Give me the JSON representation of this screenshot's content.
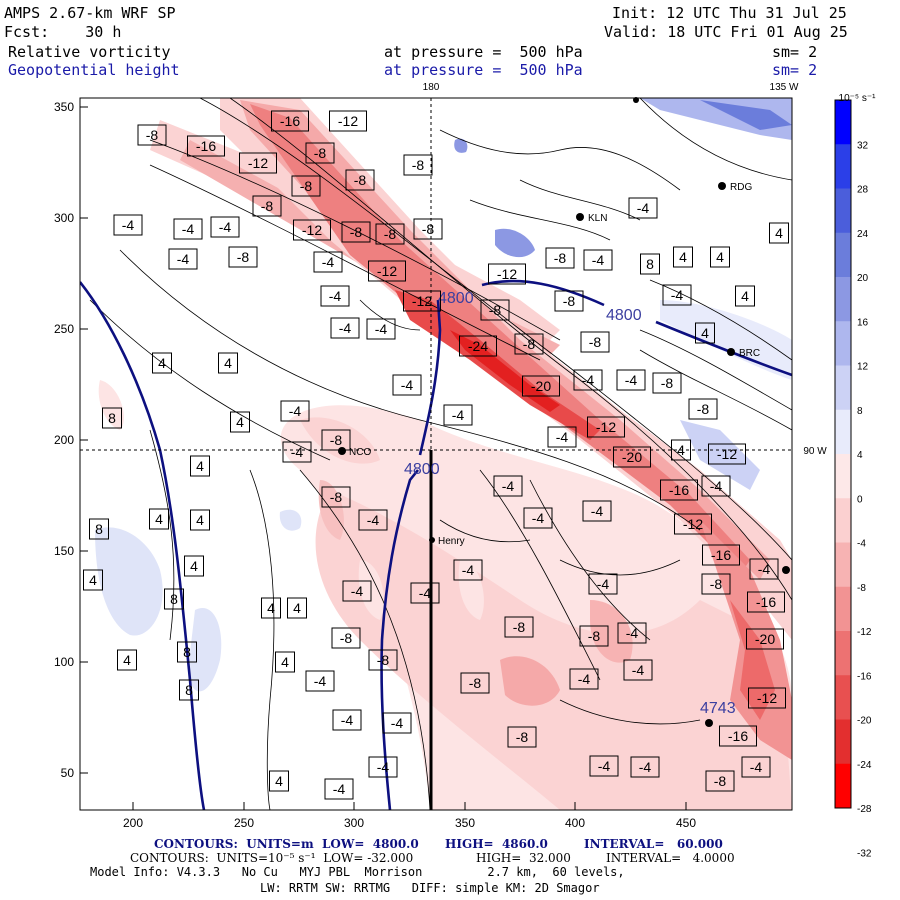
{
  "header": {
    "model": "AMPS 2.67-km WRF SP",
    "fcst": "Fcst:    30 h",
    "init": "Init: 12 UTC Thu 31 Jul 25",
    "valid": "Valid: 18 UTC Fri 01 Aug 25",
    "field1": "Relative vorticity",
    "field1_level": "at pressure =  500 hPa",
    "field1_sm": "sm= 2",
    "field2": "Geopotential height",
    "field2_level": "at pressure =  500 hPa",
    "field2_sm": "sm= 2"
  },
  "map": {
    "lon_top_180": "180",
    "lon_top_135w": "135 W",
    "lon_right_90w": "90 W",
    "x_ticks": [
      "200",
      "250",
      "300",
      "350",
      "400",
      "450"
    ],
    "y_ticks": [
      "350",
      "300",
      "250",
      "200",
      "150",
      "100",
      "50"
    ],
    "stations": [
      "RDG",
      "KLN",
      "NCO",
      "Henry",
      "BRC"
    ],
    "height_labels": [
      "4800",
      "4800",
      "4800",
      "4743"
    ],
    "vort_labels": {
      "m4": "-4",
      "m8": "-8",
      "m12": "-12",
      "m16": "-16",
      "m20": "-20",
      "m24": "-24",
      "p4": "4",
      "p8": "8"
    }
  },
  "colorbar": {
    "unit": "10⁻⁵ s⁻¹",
    "labels": [
      "32",
      "28",
      "24",
      "20",
      "16",
      "12",
      "8",
      "4",
      "0",
      "-4",
      "-8",
      "-12",
      "-16",
      "-20",
      "-24",
      "-28",
      "-32"
    ],
    "colors": [
      "#0000ff",
      "#2b3fe8",
      "#4b5edb",
      "#6b7ddb",
      "#8c98e3",
      "#aeb7ee",
      "#ccd2f5",
      "#e8ebfb",
      "#fde8e8",
      "#fbd0d0",
      "#f7b3b3",
      "#f29393",
      "#ed7272",
      "#e85050",
      "#e32f2f",
      "#ff0000"
    ]
  },
  "footer": {
    "line1_label": "CONTOURS:  UNITS=m  LOW=  4800.0",
    "line1_high": "HIGH=  4860.0",
    "line1_int": "INTERVAL=   60.000",
    "line2_label": "CONTOURS:  UNITS=10⁻⁵ s⁻¹  LOW= -32.000",
    "line2_high": "HIGH=  32.000",
    "line2_int": "INTERVAL=   4.0000",
    "line3": "Model Info: V4.3.3   No Cu   MYJ PBL  Morrison         2.7 km,  60 levels,",
    "line4": "LW: RRTM SW: RRTMG   DIFF: simple KM: 2D Smagor"
  }
}
